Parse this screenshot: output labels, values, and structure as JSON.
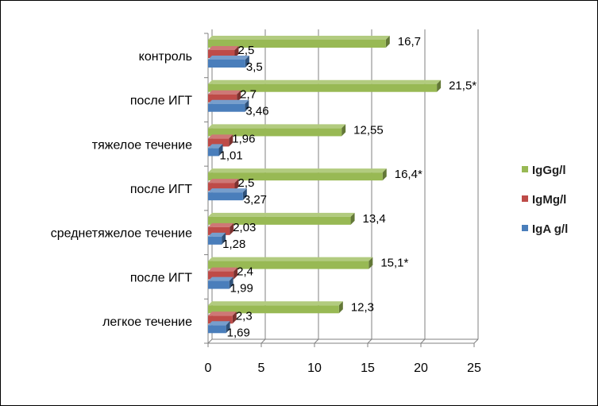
{
  "chart_data": {
    "type": "bar",
    "orientation": "horizontal",
    "bar_style": "3d",
    "grid": true,
    "legend_position": "right",
    "categories": [
      "легкое течение",
      "после ИГТ",
      "среднетяжелое течение",
      "после ИГТ",
      "тяжелое течение",
      "после ИГТ",
      "контроль"
    ],
    "series": [
      {
        "name": "IgA g/l",
        "color": "#4a7ebb",
        "values": [
          1.69,
          1.99,
          1.28,
          3.27,
          1.01,
          3.46,
          3.5
        ],
        "labels": [
          "1,69",
          "1,99",
          "1,28",
          "3,27",
          "1,01",
          "3,46",
          "3,5"
        ]
      },
      {
        "name": "IgMg/l",
        "color": "#be4b48",
        "values": [
          2.3,
          2.4,
          2.03,
          2.5,
          1.96,
          2.7,
          2.5
        ],
        "labels": [
          "2,3",
          "2,4",
          "2,03",
          "2,5",
          "1,96",
          "2,7",
          "2,5"
        ]
      },
      {
        "name": "IgGg/l",
        "color": "#98b954",
        "values": [
          12.3,
          15.1,
          13.4,
          16.4,
          12.55,
          21.5,
          16.7
        ],
        "labels": [
          "12,3",
          "15,1*",
          "13,4",
          "16,4*",
          "12,55",
          "21,5*",
          "16,7"
        ]
      }
    ],
    "xlim": [
      0,
      25
    ],
    "x_ticks": [
      "0",
      "5",
      "10",
      "15",
      "20",
      "25"
    ],
    "legend_order": [
      "IgGg/l",
      "IgMg/l",
      "IgA g/l"
    ]
  }
}
